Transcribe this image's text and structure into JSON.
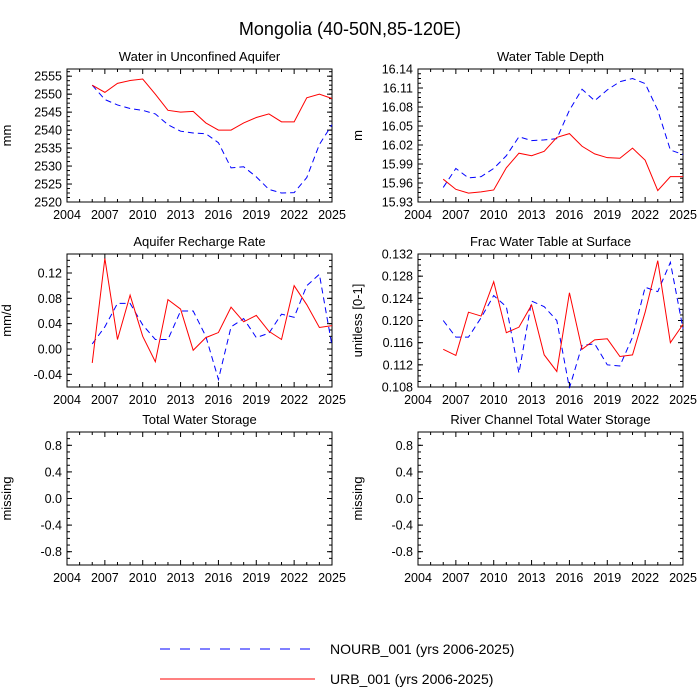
{
  "title": "Mongolia (40-50N,85-120E)",
  "colors": {
    "nourb": "#0000ff",
    "urb": "#ff0000",
    "frame": "#000000"
  },
  "legend": {
    "nourb_label": "NOURB_001 (yrs 2006-2025)",
    "urb_label": "URB_001 (yrs 2006-2025)"
  },
  "chart_data": [
    {
      "type": "line",
      "title": "Water in Unconfined Aquifer",
      "xlabel": "",
      "ylabel": "mm",
      "xlim": [
        2004,
        2025
      ],
      "ylim": [
        2520,
        2557
      ],
      "xticks": [
        2004,
        2007,
        2010,
        2013,
        2016,
        2019,
        2022,
        2025
      ],
      "yticks": [
        2520,
        2525,
        2530,
        2535,
        2540,
        2545,
        2550,
        2555
      ],
      "ytick_labels": [
        "2520",
        "2525",
        "2530",
        "2535",
        "2540",
        "2545",
        "2550",
        "2555"
      ],
      "x": [
        2006,
        2007,
        2008,
        2009,
        2010,
        2011,
        2012,
        2013,
        2014,
        2015,
        2016,
        2017,
        2018,
        2019,
        2020,
        2021,
        2022,
        2023,
        2024,
        2025
      ],
      "series": [
        {
          "name": "NOURB_001 (yrs 2006-2025)",
          "key": "nourb",
          "style": "dashed",
          "values": [
            2552.5,
            2548.5,
            2547,
            2546,
            2545.5,
            2544.5,
            2541.5,
            2539.7,
            2539.2,
            2539,
            2536.5,
            2529.5,
            2529.8,
            2527,
            2523.5,
            2522.5,
            2522.6,
            2526.8,
            2536,
            2541.5
          ]
        },
        {
          "name": "URB_001 (yrs 2006-2025)",
          "key": "urb",
          "style": "solid",
          "values": [
            2552.5,
            2550.5,
            2553,
            2553.8,
            2554.2,
            2550,
            2545.5,
            2545,
            2545.2,
            2542,
            2540,
            2540,
            2542,
            2543.5,
            2544.5,
            2542.3,
            2542.3,
            2549,
            2550,
            2548.8
          ]
        }
      ]
    },
    {
      "type": "line",
      "title": "Water Table Depth",
      "xlabel": "",
      "ylabel": "m",
      "xlim": [
        2004,
        2025
      ],
      "ylim": [
        15.93,
        16.14
      ],
      "xticks": [
        2004,
        2007,
        2010,
        2013,
        2016,
        2019,
        2022,
        2025
      ],
      "yticks": [
        15.93,
        15.96,
        15.99,
        16.02,
        16.05,
        16.08,
        16.11,
        16.14
      ],
      "ytick_labels": [
        "15.93",
        "15.96",
        "15.99",
        "16.02",
        "16.05",
        "16.08",
        "16.11",
        "16.14"
      ],
      "x": [
        2006,
        2007,
        2008,
        2009,
        2010,
        2011,
        2012,
        2013,
        2014,
        2015,
        2016,
        2017,
        2018,
        2019,
        2020,
        2021,
        2022,
        2023,
        2024,
        2025
      ],
      "series": [
        {
          "name": "NOURB_001 (yrs 2006-2025)",
          "key": "nourb",
          "style": "dashed",
          "values": [
            15.953,
            15.983,
            15.968,
            15.97,
            15.983,
            16.003,
            16.033,
            16.027,
            16.028,
            16.03,
            16.075,
            16.108,
            16.09,
            16.107,
            16.12,
            16.125,
            16.117,
            16.075,
            16.012,
            16.005
          ]
        },
        {
          "name": "URB_001 (yrs 2006-2025)",
          "key": "urb",
          "style": "solid",
          "values": [
            15.966,
            15.95,
            15.944,
            15.946,
            15.949,
            15.984,
            16.007,
            16.003,
            16.01,
            16.032,
            16.038,
            16.018,
            16.006,
            16,
            15.999,
            16.015,
            15.996,
            15.948,
            15.97,
            15.97
          ]
        }
      ]
    },
    {
      "type": "line",
      "title": "Aquifer Recharge Rate",
      "xlabel": "",
      "ylabel": "mm/d",
      "xlim": [
        2004,
        2025
      ],
      "ylim": [
        -0.06,
        0.15
      ],
      "xticks": [
        2004,
        2007,
        2010,
        2013,
        2016,
        2019,
        2022,
        2025
      ],
      "yticks": [
        -0.04,
        0.0,
        0.04,
        0.08,
        0.12
      ],
      "ytick_labels": [
        "-0.04",
        "0.00",
        "0.04",
        "0.08",
        "0.12"
      ],
      "x": [
        2006,
        2007,
        2008,
        2009,
        2010,
        2011,
        2012,
        2013,
        2014,
        2015,
        2016,
        2017,
        2018,
        2019,
        2020,
        2021,
        2022,
        2023,
        2024,
        2025
      ],
      "series": [
        {
          "name": "NOURB_001 (yrs 2006-2025)",
          "key": "nourb",
          "style": "dashed",
          "values": [
            0.008,
            0.035,
            0.072,
            0.072,
            0.038,
            0.015,
            0.015,
            0.06,
            0.06,
            0.02,
            -0.048,
            0.035,
            0.048,
            0.018,
            0.025,
            0.055,
            0.05,
            0.1,
            0.118,
            0.005
          ]
        },
        {
          "name": "URB_001 (yrs 2006-2025)",
          "key": "urb",
          "style": "solid",
          "values": [
            -0.022,
            0.143,
            0.015,
            0.085,
            0.02,
            -0.02,
            0.078,
            0.063,
            -0.002,
            0.018,
            0.026,
            0.066,
            0.043,
            0.053,
            0.028,
            0.015,
            0.1,
            0.07,
            0.034,
            0.037
          ]
        }
      ]
    },
    {
      "type": "line",
      "title": "Frac Water Table at Surface",
      "xlabel": "",
      "ylabel": "unitless [0-1]",
      "xlim": [
        2004,
        2025
      ],
      "ylim": [
        0.108,
        0.132
      ],
      "xticks": [
        2004,
        2007,
        2010,
        2013,
        2016,
        2019,
        2022,
        2025
      ],
      "yticks": [
        0.108,
        0.112,
        0.116,
        0.12,
        0.124,
        0.128,
        0.132
      ],
      "ytick_labels": [
        "0.108",
        "0.112",
        "0.116",
        "0.120",
        "0.124",
        "0.128",
        "0.132"
      ],
      "x": [
        2006,
        2007,
        2008,
        2009,
        2010,
        2011,
        2012,
        2013,
        2014,
        2015,
        2016,
        2017,
        2018,
        2019,
        2020,
        2021,
        2022,
        2023,
        2024,
        2025
      ],
      "series": [
        {
          "name": "NOURB_001 (yrs 2006-2025)",
          "key": "nourb",
          "style": "dashed",
          "values": [
            0.12,
            0.117,
            0.117,
            0.1205,
            0.1245,
            0.1225,
            0.1105,
            0.1235,
            0.1225,
            0.12,
            0.1078,
            0.1155,
            0.1158,
            0.112,
            0.1118,
            0.117,
            0.126,
            0.1252,
            0.1305,
            0.1185
          ]
        },
        {
          "name": "URB_001 (yrs 2006-2025)",
          "key": "urb",
          "style": "solid",
          "values": [
            0.1148,
            0.1137,
            0.1215,
            0.1208,
            0.127,
            0.1178,
            0.1188,
            0.1228,
            0.1138,
            0.1108,
            0.125,
            0.1148,
            0.1165,
            0.1167,
            0.1135,
            0.1138,
            0.1215,
            0.1308,
            0.116,
            0.1193
          ]
        }
      ]
    },
    {
      "type": "line",
      "title": "Total Water Storage",
      "xlabel": "",
      "ylabel": "missing",
      "xlim": [
        2004,
        2025
      ],
      "ylim": [
        -1.0,
        1.0
      ],
      "xticks": [
        2004,
        2007,
        2010,
        2013,
        2016,
        2019,
        2022,
        2025
      ],
      "yticks": [
        -0.8,
        -0.4,
        0.0,
        0.4,
        0.8
      ],
      "ytick_labels": [
        "-0.8",
        "-0.4",
        "0.0",
        "0.4",
        "0.8"
      ],
      "x": [],
      "series": []
    },
    {
      "type": "line",
      "title": "River Channel Total Water Storage",
      "xlabel": "",
      "ylabel": "missing",
      "xlim": [
        2004,
        2025
      ],
      "ylim": [
        -1.0,
        1.0
      ],
      "xticks": [
        2004,
        2007,
        2010,
        2013,
        2016,
        2019,
        2022,
        2025
      ],
      "yticks": [
        -0.8,
        -0.4,
        0.0,
        0.4,
        0.8
      ],
      "ytick_labels": [
        "-0.8",
        "-0.4",
        "0.0",
        "0.4",
        "0.8"
      ],
      "x": [],
      "series": []
    }
  ]
}
